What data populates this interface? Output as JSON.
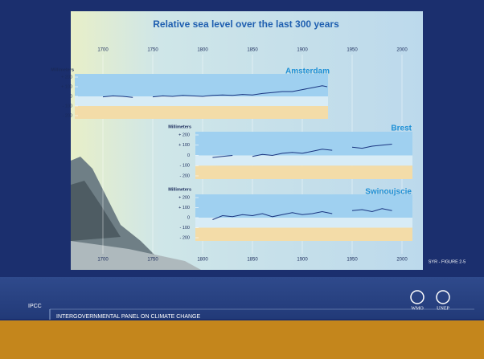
{
  "title": "Relative sea level over the last 300 years",
  "figure_ref": "SYR - FIGURE 2-5",
  "footer": {
    "org": "IPCC",
    "name": "INTERGOVERNMENTAL PANEL ON CLIMATE CHANGE",
    "logos": [
      "WMO",
      "UNEP"
    ]
  },
  "chart_data": [
    {
      "type": "line",
      "title": "Amsterdam",
      "y_label": "Millimeters",
      "color": "#1a3580",
      "grid": true,
      "xlim": [
        1700,
        2000
      ],
      "xticks": [
        1700,
        1750,
        1800,
        1850,
        1900,
        1950,
        2000
      ],
      "ylim": [
        -200,
        200
      ],
      "yticks": [
        {
          "value": 200,
          "label": "+ 200"
        },
        {
          "value": 100,
          "label": "+ 100"
        },
        0,
        {
          "value": -100,
          "label": "- 100"
        },
        {
          "value": -200,
          "label": "- 200"
        }
      ],
      "x": [
        1700,
        1710,
        1720,
        1730,
        1740,
        1750,
        1760,
        1770,
        1780,
        1790,
        1800,
        1810,
        1820,
        1830,
        1840,
        1850,
        1860,
        1870,
        1880,
        1890,
        1900,
        1910,
        1920,
        1925
      ],
      "values": [
        -5,
        5,
        0,
        -10,
        null,
        -5,
        5,
        0,
        10,
        5,
        0,
        10,
        15,
        10,
        20,
        15,
        30,
        40,
        50,
        50,
        70,
        90,
        110,
        100
      ]
    },
    {
      "type": "line",
      "title": "Brest",
      "y_label": "Millimeters",
      "color": "#1a3580",
      "xlim": [
        1700,
        2000
      ],
      "ylim": [
        -200,
        200
      ],
      "yticks": [
        {
          "value": 200,
          "label": "+ 200"
        },
        {
          "value": 100,
          "label": "+ 100"
        },
        0,
        {
          "value": -100,
          "label": "- 100"
        },
        {
          "value": -200,
          "label": "- 200"
        }
      ],
      "x": [
        1810,
        1820,
        1830,
        1840,
        1850,
        1860,
        1870,
        1880,
        1890,
        1900,
        1910,
        1920,
        1930,
        1940,
        1950,
        1960,
        1970,
        1980,
        1990
      ],
      "values": [
        -20,
        -10,
        0,
        null,
        -10,
        10,
        0,
        20,
        30,
        20,
        40,
        60,
        50,
        null,
        80,
        70,
        90,
        100,
        110
      ]
    },
    {
      "type": "line",
      "title": "Swinoujscie",
      "y_label": "Millimeters",
      "color": "#1a3580",
      "xlim": [
        1700,
        2000
      ],
      "xticks": [
        1700,
        1750,
        1800,
        1850,
        1900,
        1950,
        2000
      ],
      "ylim": [
        -200,
        200
      ],
      "yticks": [
        {
          "value": 200,
          "label": "+ 200"
        },
        {
          "value": 100,
          "label": "+ 100"
        },
        0,
        {
          "value": -100,
          "label": "- 100"
        },
        {
          "value": -200,
          "label": "- 200"
        }
      ],
      "x": [
        1810,
        1820,
        1830,
        1840,
        1850,
        1860,
        1870,
        1880,
        1890,
        1900,
        1910,
        1920,
        1930,
        1940,
        1950,
        1960,
        1970,
        1980,
        1990
      ],
      "values": [
        -20,
        20,
        10,
        30,
        20,
        40,
        10,
        30,
        50,
        30,
        40,
        60,
        40,
        null,
        70,
        80,
        60,
        90,
        70
      ]
    }
  ]
}
